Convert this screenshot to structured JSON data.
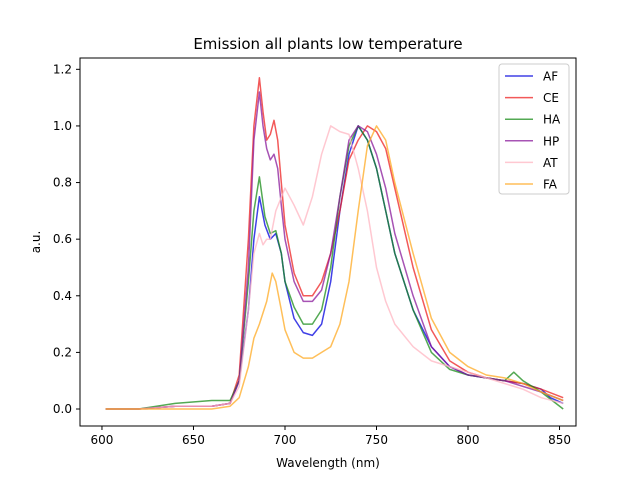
{
  "chart_data": {
    "type": "line",
    "title": "Emission all plants low temperature",
    "xlabel": "Wavelength (nm)",
    "ylabel": "a.u.",
    "xlim": [
      588,
      859
    ],
    "ylim": [
      -0.06,
      1.24
    ],
    "xticks": [
      600,
      650,
      700,
      750,
      800,
      850
    ],
    "yticks": [
      0.0,
      0.2,
      0.4,
      0.6,
      0.8,
      1.0,
      1.2
    ],
    "xtick_labels": [
      "600",
      "650",
      "700",
      "750",
      "800",
      "850"
    ],
    "ytick_labels": [
      "0.0",
      "0.2",
      "0.4",
      "0.6",
      "0.8",
      "1.0",
      "1.2"
    ],
    "grid": false,
    "legend_position": "top-right",
    "series": [
      {
        "name": "AF",
        "color": "#0000dd",
        "x": [
          602,
          620,
          640,
          660,
          670,
          675,
          680,
          683,
          686,
          689,
          692,
          695,
          698,
          700,
          705,
          710,
          715,
          720,
          725,
          730,
          735,
          740,
          745,
          750,
          755,
          760,
          770,
          780,
          790,
          800,
          810,
          820,
          830,
          840,
          845,
          852
        ],
        "y": [
          0.0,
          0.0,
          0.01,
          0.01,
          0.02,
          0.1,
          0.35,
          0.6,
          0.75,
          0.65,
          0.6,
          0.62,
          0.55,
          0.45,
          0.32,
          0.27,
          0.26,
          0.3,
          0.45,
          0.7,
          0.9,
          1.0,
          0.95,
          0.85,
          0.7,
          0.55,
          0.35,
          0.22,
          0.15,
          0.12,
          0.11,
          0.1,
          0.09,
          0.07,
          0.04,
          0.02
        ]
      },
      {
        "name": "CE",
        "color": "#ee2222",
        "x": [
          602,
          620,
          640,
          660,
          670,
          675,
          680,
          683,
          686,
          688,
          690,
          692,
          694,
          696,
          698,
          700,
          705,
          710,
          715,
          720,
          725,
          730,
          735,
          740,
          745,
          750,
          755,
          760,
          770,
          780,
          790,
          800,
          810,
          820,
          830,
          840,
          852
        ],
        "y": [
          0.0,
          0.0,
          0.01,
          0.01,
          0.02,
          0.12,
          0.6,
          1.0,
          1.17,
          1.05,
          0.95,
          0.97,
          1.02,
          0.95,
          0.8,
          0.65,
          0.48,
          0.4,
          0.4,
          0.45,
          0.55,
          0.7,
          0.88,
          0.95,
          1.0,
          0.98,
          0.92,
          0.78,
          0.5,
          0.28,
          0.17,
          0.13,
          0.11,
          0.1,
          0.09,
          0.07,
          0.04
        ]
      },
      {
        "name": "HA",
        "color": "#1a8c1a",
        "x": [
          602,
          620,
          640,
          660,
          670,
          675,
          680,
          683,
          686,
          689,
          692,
          695,
          698,
          700,
          705,
          710,
          715,
          720,
          725,
          730,
          735,
          740,
          745,
          750,
          755,
          760,
          770,
          780,
          790,
          800,
          810,
          820,
          825,
          830,
          840,
          852
        ],
        "y": [
          0.0,
          0.0,
          0.02,
          0.03,
          0.03,
          0.1,
          0.45,
          0.7,
          0.82,
          0.68,
          0.62,
          0.63,
          0.55,
          0.45,
          0.36,
          0.3,
          0.3,
          0.35,
          0.5,
          0.75,
          0.93,
          1.0,
          0.95,
          0.85,
          0.7,
          0.55,
          0.35,
          0.2,
          0.14,
          0.12,
          0.11,
          0.1,
          0.13,
          0.1,
          0.06,
          0.0
        ]
      },
      {
        "name": "HP",
        "color": "#8a1a9b",
        "x": [
          602,
          620,
          640,
          660,
          670,
          675,
          680,
          683,
          686,
          688,
          690,
          692,
          694,
          696,
          698,
          700,
          705,
          710,
          715,
          720,
          725,
          730,
          735,
          740,
          745,
          750,
          755,
          760,
          770,
          780,
          790,
          800,
          810,
          820,
          830,
          840,
          852
        ],
        "y": [
          0.0,
          0.0,
          0.01,
          0.01,
          0.02,
          0.1,
          0.5,
          0.95,
          1.12,
          1.0,
          0.92,
          0.88,
          0.9,
          0.85,
          0.72,
          0.6,
          0.45,
          0.38,
          0.38,
          0.42,
          0.55,
          0.75,
          0.95,
          1.0,
          0.98,
          0.9,
          0.78,
          0.62,
          0.4,
          0.22,
          0.15,
          0.12,
          0.11,
          0.1,
          0.08,
          0.06,
          0.03
        ]
      },
      {
        "name": "AT",
        "color": "#ffb6c1",
        "x": [
          602,
          620,
          640,
          660,
          670,
          675,
          680,
          683,
          686,
          688,
          690,
          692,
          695,
          700,
          705,
          710,
          715,
          720,
          725,
          730,
          735,
          740,
          745,
          750,
          755,
          760,
          770,
          780,
          790,
          800,
          810,
          820,
          830,
          840,
          852
        ],
        "y": [
          0.0,
          0.0,
          0.01,
          0.01,
          0.02,
          0.08,
          0.35,
          0.55,
          0.62,
          0.58,
          0.6,
          0.6,
          0.7,
          0.78,
          0.72,
          0.65,
          0.75,
          0.9,
          1.0,
          0.98,
          0.97,
          0.85,
          0.7,
          0.5,
          0.38,
          0.3,
          0.22,
          0.17,
          0.15,
          0.13,
          0.11,
          0.09,
          0.07,
          0.04,
          0.02
        ]
      },
      {
        "name": "FA",
        "color": "#ffaa22",
        "x": [
          602,
          620,
          640,
          660,
          670,
          675,
          680,
          683,
          686,
          690,
          693,
          695,
          698,
          700,
          705,
          710,
          715,
          720,
          725,
          730,
          735,
          740,
          745,
          750,
          755,
          760,
          770,
          780,
          790,
          800,
          810,
          820,
          830,
          840,
          852
        ],
        "y": [
          0.0,
          0.0,
          0.0,
          0.0,
          0.01,
          0.04,
          0.15,
          0.25,
          0.3,
          0.38,
          0.48,
          0.45,
          0.35,
          0.28,
          0.2,
          0.18,
          0.18,
          0.2,
          0.22,
          0.3,
          0.45,
          0.7,
          0.93,
          1.0,
          0.95,
          0.8,
          0.55,
          0.32,
          0.2,
          0.15,
          0.12,
          0.11,
          0.09,
          0.06,
          0.03
        ]
      }
    ]
  }
}
